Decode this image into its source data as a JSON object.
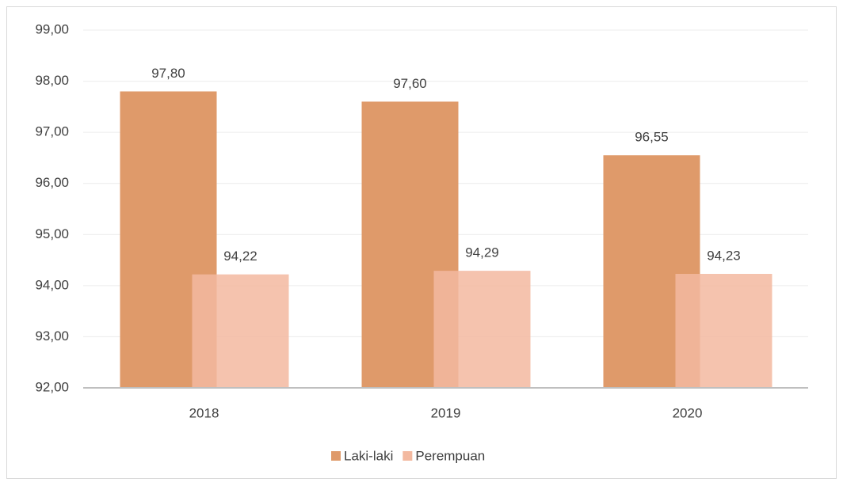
{
  "chart_data": {
    "type": "bar",
    "categories": [
      "2018",
      "2019",
      "2020"
    ],
    "series": [
      {
        "name": "Laki-laki",
        "color": "#df9a6a",
        "values": [
          97.8,
          97.6,
          96.55
        ],
        "value_labels": [
          "97,80",
          "97,60",
          "96,55"
        ]
      },
      {
        "name": "Perempuan",
        "color": "#f3b9a0",
        "values": [
          94.22,
          94.29,
          94.23
        ],
        "value_labels": [
          "94,22",
          "94,29",
          "94,23"
        ]
      }
    ],
    "ylim": [
      92,
      99
    ],
    "yticks": [
      {
        "value": 92,
        "label": "92,00"
      },
      {
        "value": 93,
        "label": "93,00"
      },
      {
        "value": 94,
        "label": "94,00"
      },
      {
        "value": 95,
        "label": "95,00"
      },
      {
        "value": 96,
        "label": "96,00"
      },
      {
        "value": 97,
        "label": "97,00"
      },
      {
        "value": 98,
        "label": "98,00"
      },
      {
        "value": 99,
        "label": "99,00"
      }
    ],
    "grid": true,
    "legend": "bottom"
  }
}
